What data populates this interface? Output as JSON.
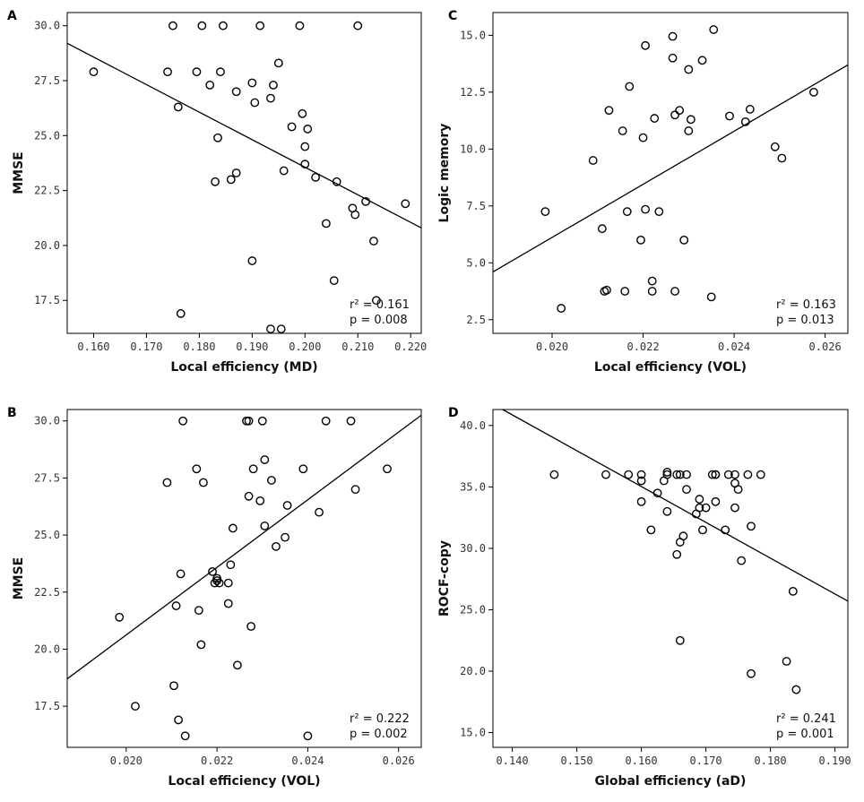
{
  "chart_data": [
    {
      "id": "A",
      "type": "scatter",
      "panel_label": "A",
      "xlabel": "Local efficiency (MD)",
      "ylabel": "MMSE",
      "xlim": [
        0.155,
        0.222
      ],
      "ylim": [
        16.0,
        30.6
      ],
      "xticks": [
        "0.160",
        "0.170",
        "0.180",
        "0.190",
        "0.200",
        "0.210",
        "0.220"
      ],
      "yticks": [
        "17.5",
        "20.0",
        "22.5",
        "25.0",
        "27.5",
        "30.0"
      ],
      "fit": [
        [
          0.155,
          29.2
        ],
        [
          0.222,
          20.8
        ]
      ],
      "stats": {
        "r2": "r² = 0.161",
        "p": "p = 0.008"
      },
      "points": [
        [
          0.16,
          27.9
        ],
        [
          0.174,
          27.9
        ],
        [
          0.175,
          30.0
        ],
        [
          0.176,
          26.3
        ],
        [
          0.1765,
          16.9
        ],
        [
          0.1795,
          27.9
        ],
        [
          0.1805,
          30.0
        ],
        [
          0.182,
          27.3
        ],
        [
          0.183,
          22.9
        ],
        [
          0.1835,
          24.9
        ],
        [
          0.184,
          27.9
        ],
        [
          0.1845,
          30.0
        ],
        [
          0.186,
          23.0
        ],
        [
          0.187,
          27.0
        ],
        [
          0.187,
          23.3
        ],
        [
          0.19,
          27.4
        ],
        [
          0.1905,
          26.5
        ],
        [
          0.19,
          19.3
        ],
        [
          0.1915,
          30.0
        ],
        [
          0.1935,
          26.7
        ],
        [
          0.194,
          27.3
        ],
        [
          0.1935,
          16.2
        ],
        [
          0.195,
          28.3
        ],
        [
          0.1955,
          16.2
        ],
        [
          0.196,
          23.4
        ],
        [
          0.1975,
          25.4
        ],
        [
          0.199,
          30.0
        ],
        [
          0.1995,
          26.0
        ],
        [
          0.2,
          24.5
        ],
        [
          0.2,
          23.7
        ],
        [
          0.2005,
          25.3
        ],
        [
          0.202,
          23.1
        ],
        [
          0.204,
          21.0
        ],
        [
          0.2055,
          18.4
        ],
        [
          0.206,
          22.9
        ],
        [
          0.209,
          21.7
        ],
        [
          0.2095,
          21.4
        ],
        [
          0.21,
          30.0
        ],
        [
          0.2115,
          22.0
        ],
        [
          0.213,
          20.2
        ],
        [
          0.2135,
          17.5
        ],
        [
          0.219,
          21.9
        ]
      ]
    },
    {
      "id": "C",
      "type": "scatter",
      "panel_label": "C",
      "xlabel": "Local efficiency (VOL)",
      "ylabel": "Logic memory",
      "xlim": [
        0.0187,
        0.0265
      ],
      "ylim": [
        1.9,
        16.0
      ],
      "xticks": [
        "0.020",
        "0.022",
        "0.024",
        "0.026"
      ],
      "yticks": [
        "2.5",
        "5.0",
        "7.5",
        "10.0",
        "12.5",
        "15.0"
      ],
      "fit": [
        [
          0.0187,
          4.6
        ],
        [
          0.0265,
          13.7
        ]
      ],
      "stats": {
        "r2": "r² = 0.163",
        "p": "p = 0.013"
      },
      "points": [
        [
          0.01985,
          7.25
        ],
        [
          0.0202,
          3.0
        ],
        [
          0.0209,
          9.5
        ],
        [
          0.0211,
          6.5
        ],
        [
          0.02115,
          3.75
        ],
        [
          0.0212,
          3.8
        ],
        [
          0.02125,
          11.7
        ],
        [
          0.02155,
          10.8
        ],
        [
          0.0216,
          3.75
        ],
        [
          0.02165,
          7.25
        ],
        [
          0.0217,
          12.75
        ],
        [
          0.02195,
          6.0
        ],
        [
          0.022,
          10.5
        ],
        [
          0.02205,
          14.55
        ],
        [
          0.02205,
          7.35
        ],
        [
          0.0222,
          4.2
        ],
        [
          0.0222,
          3.75
        ],
        [
          0.02225,
          11.35
        ],
        [
          0.02235,
          7.25
        ],
        [
          0.02265,
          14.0
        ],
        [
          0.02265,
          14.95
        ],
        [
          0.0227,
          11.5
        ],
        [
          0.0227,
          3.75
        ],
        [
          0.0228,
          11.7
        ],
        [
          0.0229,
          6.0
        ],
        [
          0.023,
          13.5
        ],
        [
          0.023,
          10.8
        ],
        [
          0.02305,
          11.3
        ],
        [
          0.0233,
          13.9
        ],
        [
          0.0235,
          3.5
        ],
        [
          0.02355,
          15.25
        ],
        [
          0.0239,
          11.45
        ],
        [
          0.02425,
          11.2
        ],
        [
          0.02435,
          11.75
        ],
        [
          0.0249,
          10.1
        ],
        [
          0.02505,
          9.6
        ],
        [
          0.02575,
          12.5
        ]
      ]
    },
    {
      "id": "B",
      "type": "scatter",
      "panel_label": "B",
      "xlabel": "Local efficiency (VOL)",
      "ylabel": "MMSE",
      "xlim": [
        0.0187,
        0.0265
      ],
      "ylim": [
        15.7,
        30.5
      ],
      "xticks": [
        "0.020",
        "0.022",
        "0.024",
        "0.026"
      ],
      "yticks": [
        "17.5",
        "20.0",
        "22.5",
        "25.0",
        "27.5",
        "30.0"
      ],
      "fit": [
        [
          0.0187,
          18.7
        ],
        [
          0.0265,
          30.25
        ]
      ],
      "stats": {
        "r2": "r² = 0.222",
        "p": "p = 0.002"
      },
      "points": [
        [
          0.01985,
          21.4
        ],
        [
          0.0202,
          17.5
        ],
        [
          0.0209,
          27.3
        ],
        [
          0.02105,
          18.4
        ],
        [
          0.0211,
          21.9
        ],
        [
          0.02115,
          16.9
        ],
        [
          0.0212,
          23.3
        ],
        [
          0.02125,
          30.0
        ],
        [
          0.0213,
          16.2
        ],
        [
          0.02155,
          27.9
        ],
        [
          0.0216,
          21.7
        ],
        [
          0.02165,
          20.2
        ],
        [
          0.0217,
          27.3
        ],
        [
          0.0219,
          23.4
        ],
        [
          0.02195,
          22.9
        ],
        [
          0.022,
          23.0
        ],
        [
          0.022,
          23.1
        ],
        [
          0.02205,
          22.9
        ],
        [
          0.02225,
          22.9
        ],
        [
          0.02225,
          22.0
        ],
        [
          0.0223,
          23.7
        ],
        [
          0.02235,
          25.3
        ],
        [
          0.02245,
          19.3
        ],
        [
          0.02265,
          30.0
        ],
        [
          0.0227,
          30.0
        ],
        [
          0.0227,
          26.7
        ],
        [
          0.02275,
          21.0
        ],
        [
          0.0228,
          27.9
        ],
        [
          0.02295,
          26.5
        ],
        [
          0.023,
          30.0
        ],
        [
          0.02305,
          28.3
        ],
        [
          0.02305,
          25.4
        ],
        [
          0.0232,
          27.4
        ],
        [
          0.0233,
          24.5
        ],
        [
          0.0235,
          24.9
        ],
        [
          0.02355,
          26.3
        ],
        [
          0.0239,
          27.9
        ],
        [
          0.024,
          16.2
        ],
        [
          0.02425,
          26.0
        ],
        [
          0.0244,
          30.0
        ],
        [
          0.02495,
          30.0
        ],
        [
          0.02505,
          27.0
        ],
        [
          0.02575,
          27.9
        ]
      ]
    },
    {
      "id": "D",
      "type": "scatter",
      "panel_label": "D",
      "xlabel": "Global efficiency (aD)",
      "ylabel": "ROCF-copy",
      "xlim": [
        0.137,
        0.192
      ],
      "ylim": [
        13.8,
        41.3
      ],
      "xticks": [
        "0.140",
        "0.150",
        "0.160",
        "0.170",
        "0.180",
        "0.190"
      ],
      "yticks": [
        "15.0",
        "20.0",
        "25.0",
        "30.0",
        "35.0",
        "40.0"
      ],
      "fit": [
        [
          0.1385,
          41.3
        ],
        [
          0.192,
          25.7
        ]
      ],
      "stats": {
        "r2": "r² = 0.241",
        "p": "p = 0.001"
      },
      "points": [
        [
          0.1465,
          36.0
        ],
        [
          0.1545,
          36.0
        ],
        [
          0.158,
          36.0
        ],
        [
          0.16,
          36.0
        ],
        [
          0.16,
          35.5
        ],
        [
          0.16,
          33.8
        ],
        [
          0.1615,
          31.5
        ],
        [
          0.1625,
          34.5
        ],
        [
          0.1635,
          35.5
        ],
        [
          0.164,
          36.2
        ],
        [
          0.164,
          36.0
        ],
        [
          0.164,
          33.0
        ],
        [
          0.1655,
          36.0
        ],
        [
          0.1655,
          29.5
        ],
        [
          0.166,
          36.0
        ],
        [
          0.166,
          30.5
        ],
        [
          0.166,
          22.5
        ],
        [
          0.1665,
          31.0
        ],
        [
          0.167,
          36.0
        ],
        [
          0.167,
          34.8
        ],
        [
          0.1685,
          32.8
        ],
        [
          0.169,
          34.0
        ],
        [
          0.169,
          33.3
        ],
        [
          0.1695,
          31.5
        ],
        [
          0.17,
          33.3
        ],
        [
          0.171,
          36.0
        ],
        [
          0.1715,
          36.0
        ],
        [
          0.1715,
          33.8
        ],
        [
          0.1715,
          36.0
        ],
        [
          0.173,
          31.5
        ],
        [
          0.1735,
          36.0
        ],
        [
          0.1745,
          36.0
        ],
        [
          0.1745,
          35.3
        ],
        [
          0.1745,
          33.3
        ],
        [
          0.175,
          34.8
        ],
        [
          0.1755,
          29.0
        ],
        [
          0.1765,
          36.0
        ],
        [
          0.177,
          31.8
        ],
        [
          0.177,
          19.8
        ],
        [
          0.1785,
          36.0
        ],
        [
          0.1825,
          20.8
        ],
        [
          0.1835,
          26.5
        ],
        [
          0.184,
          18.5
        ]
      ]
    }
  ]
}
